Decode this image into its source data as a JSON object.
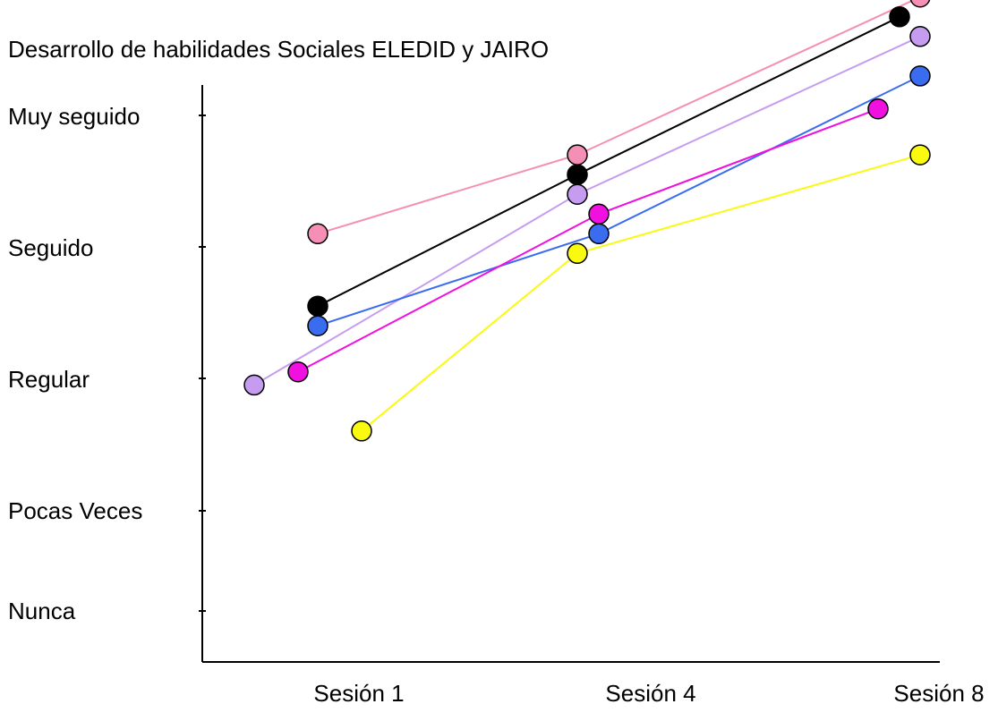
{
  "chart_data": {
    "type": "line",
    "title": "Desarrollo de habilidades Sociales ELEDID y JAIRO",
    "xlabel": "",
    "ylabel": "",
    "categories": [
      "Sesión 1",
      "Sesión 4",
      "Sesión 8"
    ],
    "y_levels": [
      "Nunca",
      "Pocas Veces",
      "Regular",
      "Seguido",
      "Muy seguido"
    ],
    "ylim": [
      0.6,
      4.9
    ],
    "grid": false,
    "series": [
      {
        "color": "#f58fb5",
        "values": [
          3.1,
          3.7,
          4.9
        ]
      },
      {
        "color": "#000000",
        "values": [
          2.55,
          3.55,
          4.75
        ]
      },
      {
        "color": "#c59cf0",
        "values": [
          1.95,
          3.4,
          4.6
        ]
      },
      {
        "color": "#3a6cf0",
        "values": [
          2.4,
          3.1,
          4.3
        ]
      },
      {
        "color": "#f010e0",
        "values": [
          2.05,
          3.25,
          4.05
        ]
      },
      {
        "color": "#fafa10",
        "values": [
          1.6,
          2.95,
          3.7
        ]
      }
    ]
  }
}
